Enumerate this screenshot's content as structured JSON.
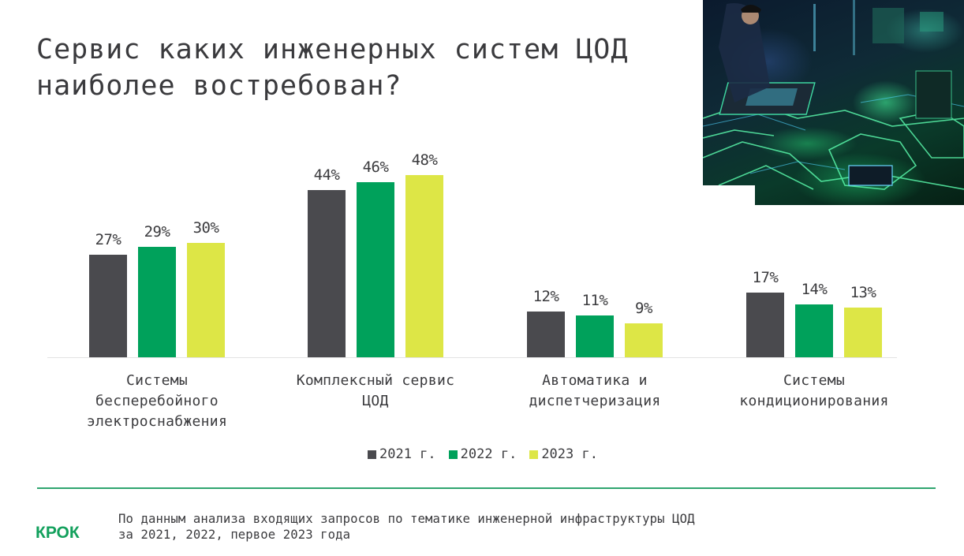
{
  "title": {
    "line1": "Сервис каких инженерных систем ЦОД",
    "line2": "наиболее востребован?"
  },
  "hero_image": {
    "icon": "engineer-circuit-board-illustration"
  },
  "chart_data": {
    "type": "bar",
    "title": "Сервис каких инженерных систем ЦОД наиболее востребован?",
    "xlabel": "",
    "ylabel": "",
    "ylim": [
      0,
      50
    ],
    "grid": false,
    "legend_position": "bottom-center",
    "categories": [
      [
        "Системы",
        "бесперебойного",
        "электроснабжения"
      ],
      [
        "Комплексный сервис",
        "ЦОД"
      ],
      [
        "Автоматика и",
        "диспетчеризация"
      ],
      [
        "Системы",
        "кондиционирования"
      ]
    ],
    "series": [
      {
        "name": "2021 г.",
        "color": "#4a4a4e",
        "values": [
          27,
          44,
          12,
          17
        ],
        "labels": [
          "27%",
          "44%",
          "12%",
          "17%"
        ]
      },
      {
        "name": "2022 г.",
        "color": "#00a15b",
        "values": [
          29,
          46,
          11,
          14
        ],
        "labels": [
          "29%",
          "46%",
          "11%",
          "14%"
        ]
      },
      {
        "name": "2023 г.",
        "color": "#dde646",
        "values": [
          30,
          48,
          9,
          13
        ],
        "labels": [
          "30%",
          "48%",
          "9%",
          "13%"
        ]
      }
    ]
  },
  "footer": {
    "logo": "КРОК",
    "note_line1": "По данным анализа входящих запросов по тематике инженерной инфраструктуры ЦОД",
    "note_line2": "за 2021, 2022, первое 2023 года",
    "rule_color": "#2fa56f",
    "logo_color": "#12a05c"
  }
}
